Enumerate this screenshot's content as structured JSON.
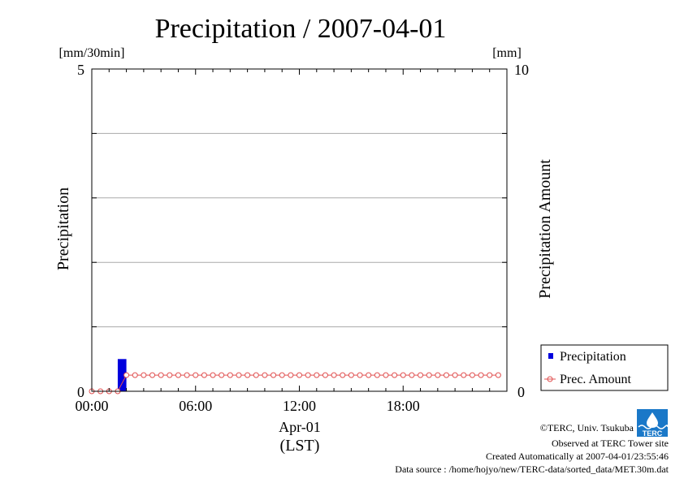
{
  "chart_data": {
    "type": "bar",
    "title": "Precipitation / 2007-04-01",
    "left_axis": {
      "unit": "[mm/30min]",
      "label": "Precipitation",
      "range": [
        0,
        5
      ],
      "tick_labels": [
        "0",
        "5"
      ]
    },
    "right_axis": {
      "unit": "[mm]",
      "label": "Precipitation Amount",
      "range": [
        0,
        10
      ],
      "tick_labels": [
        "0",
        "10"
      ]
    },
    "x_axis": {
      "range_hours": [
        0,
        24
      ],
      "tick_labels": [
        "00:00",
        "06:00",
        "12:00",
        "18:00"
      ],
      "tick_hours": [
        0,
        6,
        12,
        18
      ],
      "date_label": "Apr-01",
      "tz_label": "(LST)"
    },
    "grid": true,
    "legend_position": "bottom-right",
    "series": [
      {
        "name": "Precipitation",
        "axis": "left",
        "kind": "bar",
        "color": "#0000dd",
        "x_hours": [
          1.5
        ],
        "values": [
          0.5
        ]
      },
      {
        "name": "Prec. Amount",
        "axis": "right",
        "kind": "line-marker",
        "color": "#e05050",
        "x_hours": [
          0,
          0.5,
          1,
          1.5,
          2,
          2.5,
          3,
          3.5,
          4,
          4.5,
          5,
          5.5,
          6,
          6.5,
          7,
          7.5,
          8,
          8.5,
          9,
          9.5,
          10,
          10.5,
          11,
          11.5,
          12,
          12.5,
          13,
          13.5,
          14,
          14.5,
          15,
          15.5,
          16,
          16.5,
          17,
          17.5,
          18,
          18.5,
          19,
          19.5,
          20,
          20.5,
          21,
          21.5,
          22,
          22.5,
          23,
          23.5
        ],
        "values": [
          0,
          0,
          0,
          0,
          0.5,
          0.5,
          0.5,
          0.5,
          0.5,
          0.5,
          0.5,
          0.5,
          0.5,
          0.5,
          0.5,
          0.5,
          0.5,
          0.5,
          0.5,
          0.5,
          0.5,
          0.5,
          0.5,
          0.5,
          0.5,
          0.5,
          0.5,
          0.5,
          0.5,
          0.5,
          0.5,
          0.5,
          0.5,
          0.5,
          0.5,
          0.5,
          0.5,
          0.5,
          0.5,
          0.5,
          0.5,
          0.5,
          0.5,
          0.5,
          0.5,
          0.5,
          0.5,
          0.5
        ]
      }
    ]
  },
  "footer": {
    "logo_text": "TERC",
    "copyright": "©TERC, Univ. Tsukuba",
    "observed": "Observed at TERC Tower site",
    "created": "Created Automatically at 2007-04-01/23:55:46",
    "source": "Data source : /home/hojyo/new/TERC-data/sorted_data/MET.30m.dat"
  }
}
